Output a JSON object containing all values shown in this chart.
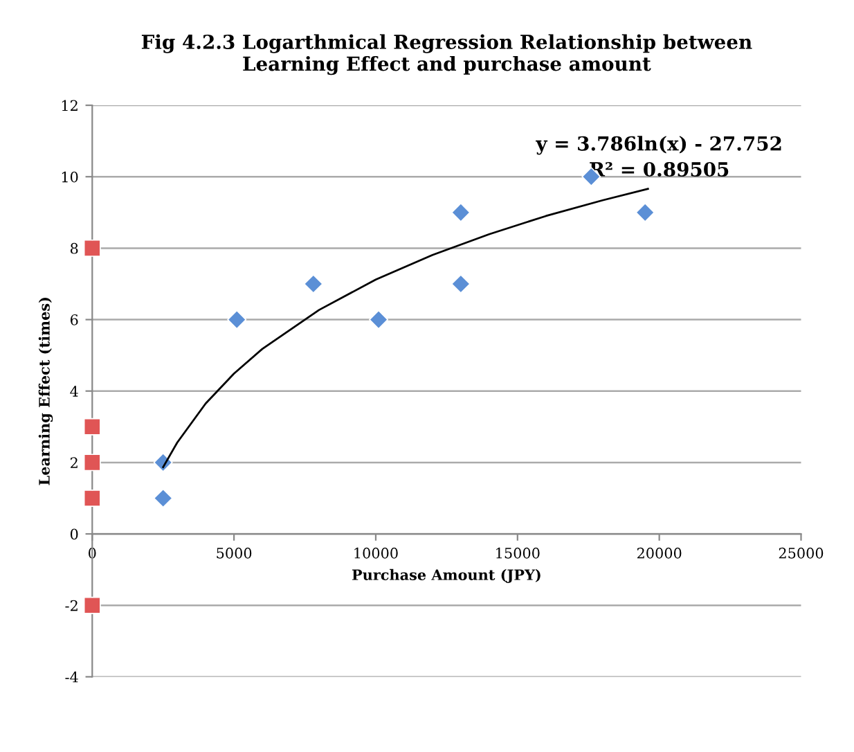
{
  "chart_data": {
    "type": "scatter",
    "title": "Fig 4.2.3 Logarthmical Regression Relationship between\nLearning Effect and purchase amount",
    "xlabel": "Purchase Amount (JPY)",
    "ylabel": "Learning Effect (times)",
    "series": [
      {
        "color": "#5b8fd6",
        "marker": "diamond",
        "x": [
          2500,
          2500,
          5100,
          7800,
          10100,
          13000,
          13000,
          17600,
          19500
        ],
        "values": [
          2,
          1,
          6,
          7,
          6,
          9,
          7,
          10,
          9
        ]
      },
      {
        "color": "#e05555",
        "marker": "square",
        "x": [
          0,
          0,
          0,
          0,
          0
        ],
        "values": [
          8,
          3,
          2,
          1,
          -2
        ]
      },
      {
        "type": "line",
        "color": "#000000",
        "marker": "none",
        "x": [
          2500,
          3000,
          4000,
          5000,
          6000,
          8000,
          10000,
          12000,
          14000,
          16000,
          18000,
          19600
        ],
        "values": [
          1.87,
          2.56,
          3.65,
          4.49,
          5.18,
          6.27,
          7.12,
          7.81,
          8.39,
          8.9,
          9.34,
          9.66
        ]
      }
    ],
    "annotations": [
      "y = 3.786ln(x) - 27.752",
      "R² = 0.89505"
    ],
    "xlim": [
      0,
      25000
    ],
    "xticks": [
      0,
      5000,
      10000,
      15000,
      20000,
      25000
    ],
    "ylim": [
      -4,
      12
    ],
    "yticks": [
      -4,
      -2,
      0,
      2,
      4,
      6,
      8,
      10,
      12
    ],
    "grid": "y",
    "legend": false
  }
}
